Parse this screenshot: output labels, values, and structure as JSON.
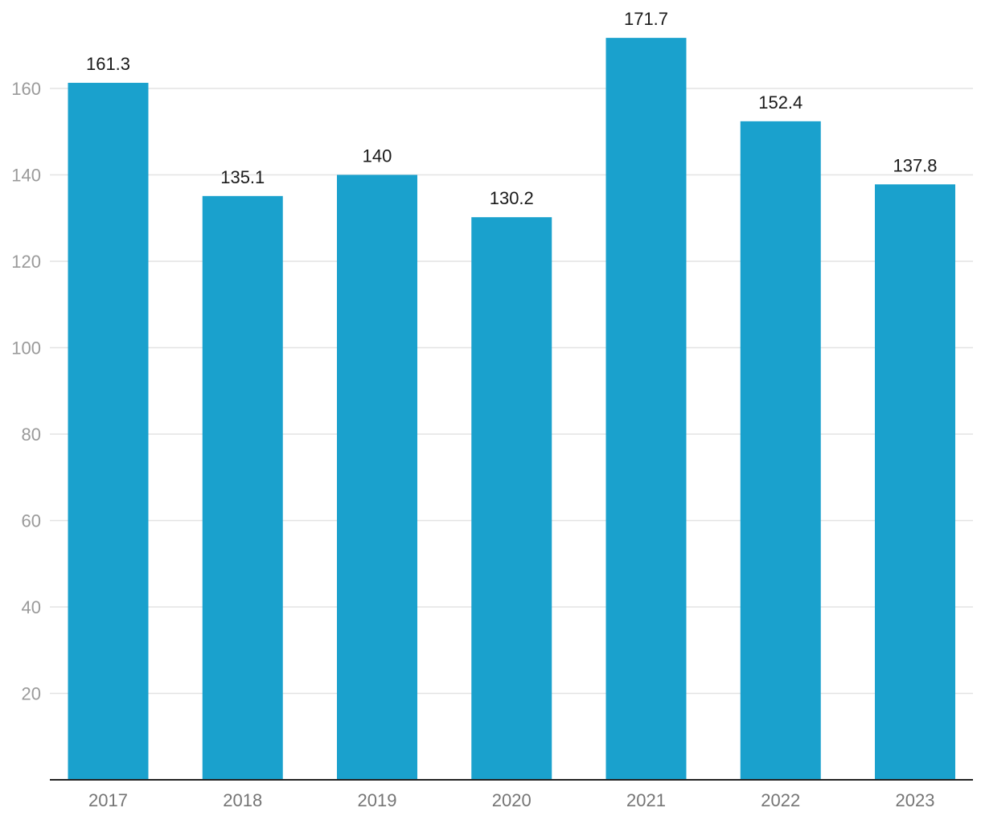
{
  "chart_data": {
    "type": "bar",
    "title": "",
    "xlabel": "",
    "ylabel": "",
    "categories": [
      "2017",
      "2018",
      "2019",
      "2020",
      "2021",
      "2022",
      "2023"
    ],
    "values": [
      161.3,
      135.1,
      140,
      130.2,
      171.7,
      152.4,
      137.8
    ],
    "value_labels": [
      "161.3",
      "135.1",
      "140",
      "130.2",
      "171.7",
      "152.4",
      "137.8"
    ],
    "y_ticks": [
      20,
      40,
      60,
      80,
      100,
      120,
      140,
      160
    ],
    "y_tick_labels": [
      "20",
      "40",
      "60",
      "80",
      "100",
      "120",
      "140",
      "160"
    ],
    "ylim": [
      0,
      175
    ],
    "grid": true,
    "legend": "none",
    "colors": {
      "bar": "#1aa1cd",
      "grid": "#e3e3e3",
      "baseline": "#222222",
      "y_tick_text": "#9a9a9a",
      "x_tick_text": "#757575",
      "data_label_text": "#1a1a1a"
    }
  }
}
